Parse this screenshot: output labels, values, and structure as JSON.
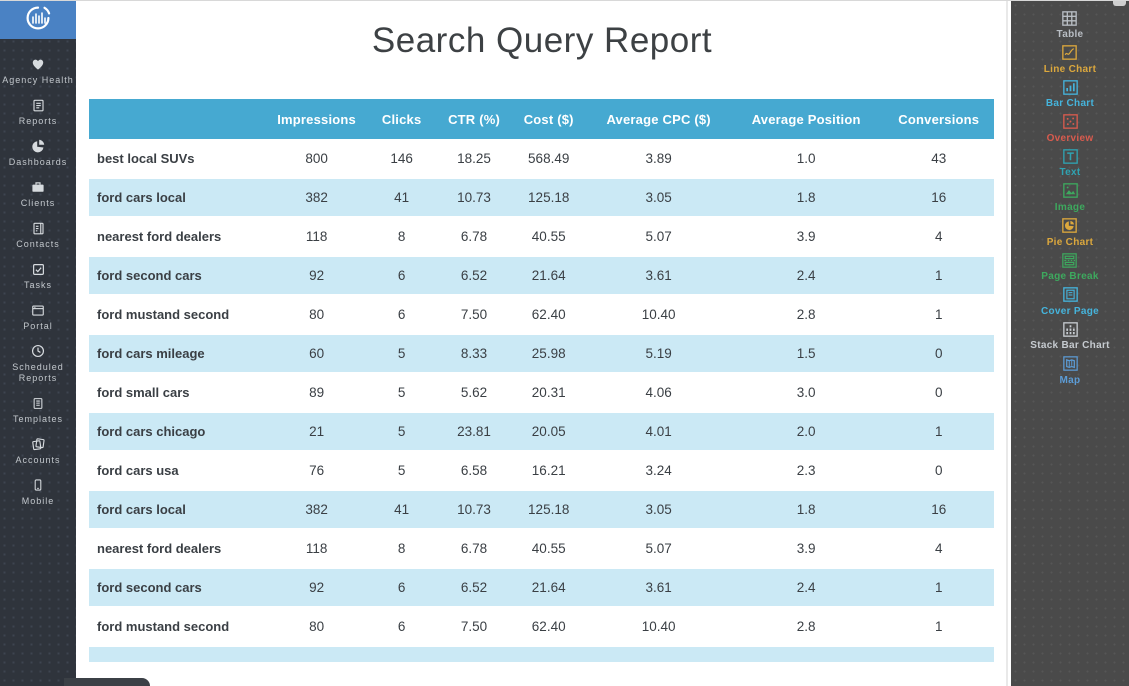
{
  "app": {
    "logo_icon": "bar-chart-circle-logo"
  },
  "colors": {
    "logo_bg": "#4a82c4",
    "left_sidebar_bg": "#2f343c",
    "right_sidebar_bg": "#4a4a4a",
    "table_header_bg": "#46a9d1",
    "table_alt_row_bg": "#cbe9f5"
  },
  "left_sidebar": {
    "items": [
      {
        "label": "Agency Health",
        "icon": "heart-icon"
      },
      {
        "label": "Reports",
        "icon": "report-icon"
      },
      {
        "label": "Dashboards",
        "icon": "pie-slice-icon"
      },
      {
        "label": "Clients",
        "icon": "briefcase-icon"
      },
      {
        "label": "Contacts",
        "icon": "contact-card-icon"
      },
      {
        "label": "Tasks",
        "icon": "checkbox-icon"
      },
      {
        "label": "Portal",
        "icon": "browser-window-icon"
      },
      {
        "label": "Scheduled Reports",
        "icon": "clock-icon"
      },
      {
        "label": "Templates",
        "icon": "document-icon"
      },
      {
        "label": "Accounts",
        "icon": "stacked-pages-icon"
      },
      {
        "label": "Mobile",
        "icon": "phone-icon"
      }
    ]
  },
  "report": {
    "title": "Search Query Report",
    "table": {
      "columns": [
        "",
        "Impressions",
        "Clicks",
        "CTR (%)",
        "Cost ($)",
        "Average CPC ($)",
        "Average Position",
        "Conversions"
      ],
      "rows": [
        [
          "best local SUVs",
          "800",
          "146",
          "18.25",
          "568.49",
          "3.89",
          "1.0",
          "43"
        ],
        [
          "ford cars local",
          "382",
          "41",
          "10.73",
          "125.18",
          "3.05",
          "1.8",
          "16"
        ],
        [
          "nearest ford dealers",
          "118",
          "8",
          "6.78",
          "40.55",
          "5.07",
          "3.9",
          "4"
        ],
        [
          "ford second cars",
          "92",
          "6",
          "6.52",
          "21.64",
          "3.61",
          "2.4",
          "1"
        ],
        [
          "ford mustand second",
          "80",
          "6",
          "7.50",
          "62.40",
          "10.40",
          "2.8",
          "1"
        ],
        [
          "ford cars mileage",
          "60",
          "5",
          "8.33",
          "25.98",
          "5.19",
          "1.5",
          "0"
        ],
        [
          "ford small cars",
          "89",
          "5",
          "5.62",
          "20.31",
          "4.06",
          "3.0",
          "0"
        ],
        [
          "ford cars chicago",
          "21",
          "5",
          "23.81",
          "20.05",
          "4.01",
          "2.0",
          "1"
        ],
        [
          "ford cars usa",
          "76",
          "5",
          "6.58",
          "16.21",
          "3.24",
          "2.3",
          "0"
        ],
        [
          "ford cars local",
          "382",
          "41",
          "10.73",
          "125.18",
          "3.05",
          "1.8",
          "16"
        ],
        [
          "nearest ford dealers",
          "118",
          "8",
          "6.78",
          "40.55",
          "5.07",
          "3.9",
          "4"
        ],
        [
          "ford second cars",
          "92",
          "6",
          "6.52",
          "21.64",
          "3.61",
          "2.4",
          "1"
        ],
        [
          "ford mustand second",
          "80",
          "6",
          "7.50",
          "62.40",
          "10.40",
          "2.8",
          "1"
        ]
      ]
    }
  },
  "right_sidebar": {
    "widgets": [
      {
        "label": "Table",
        "icon": "table-grid-icon",
        "color": "#b9bec4"
      },
      {
        "label": "Line Chart",
        "icon": "line-chart-icon",
        "color": "#dca83d"
      },
      {
        "label": "Bar Chart",
        "icon": "bar-chart-icon",
        "color": "#45b4dc"
      },
      {
        "label": "Overview",
        "icon": "overview-dots-icon",
        "color": "#d95b4e"
      },
      {
        "label": "Text",
        "icon": "text-icon",
        "color": "#2fa3b2"
      },
      {
        "label": "Image",
        "icon": "image-icon",
        "color": "#3da95e"
      },
      {
        "label": "Pie Chart",
        "icon": "pie-chart-icon",
        "color": "#dca83d"
      },
      {
        "label": "Page Break",
        "icon": "page-break-icon",
        "color": "#3da95e"
      },
      {
        "label": "Cover Page",
        "icon": "cover-page-icon",
        "color": "#45b4dc"
      },
      {
        "label": "Stack Bar Chart",
        "icon": "stacked-bar-icon",
        "color": "#c6cbd0"
      },
      {
        "label": "Map",
        "icon": "map-icon",
        "color": "#5c9cd6"
      }
    ]
  }
}
